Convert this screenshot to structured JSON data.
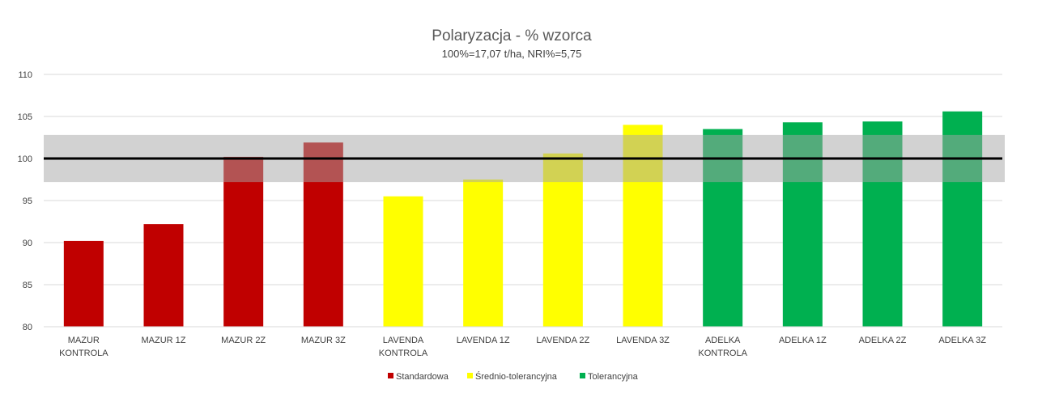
{
  "chart_data": {
    "type": "bar",
    "title": "Polaryzacja - % wzorca",
    "subtitle": "100%=17,07 t/ha, NRI%=5,75",
    "ylim": [
      80,
      110
    ],
    "yticks": [
      80,
      85,
      90,
      95,
      100,
      105,
      110
    ],
    "grid": true,
    "legend_position": "bottom",
    "reference_line": 100,
    "band": [
      97.2,
      102.8
    ],
    "categories": [
      [
        "MAZUR",
        "KONTROLA"
      ],
      [
        "MAZUR 1Z"
      ],
      [
        "MAZUR 2Z"
      ],
      [
        "MAZUR 3Z"
      ],
      [
        "LAVENDA",
        "KONTROLA"
      ],
      [
        "LAVENDA 1Z"
      ],
      [
        "LAVENDA 2Z"
      ],
      [
        "LAVENDA 3Z"
      ],
      [
        "ADELKA",
        "KONTROLA"
      ],
      [
        "ADELKA 1Z"
      ],
      [
        "ADELKA 2Z"
      ],
      [
        "ADELKA 3Z"
      ]
    ],
    "series": [
      {
        "name": "Standardowa",
        "color": "#c00000",
        "values": [
          90.2,
          92.2,
          100.2,
          101.9,
          null,
          null,
          null,
          null,
          null,
          null,
          null,
          null
        ]
      },
      {
        "name": "Średnio-tolerancyjna",
        "color": "#ffff00",
        "values": [
          null,
          null,
          null,
          null,
          95.5,
          97.5,
          100.6,
          104.0,
          null,
          null,
          null,
          null
        ]
      },
      {
        "name": "Tolerancyjna",
        "color": "#00b050",
        "values": [
          null,
          null,
          null,
          null,
          null,
          null,
          null,
          null,
          103.5,
          104.3,
          104.4,
          105.6
        ]
      }
    ]
  }
}
